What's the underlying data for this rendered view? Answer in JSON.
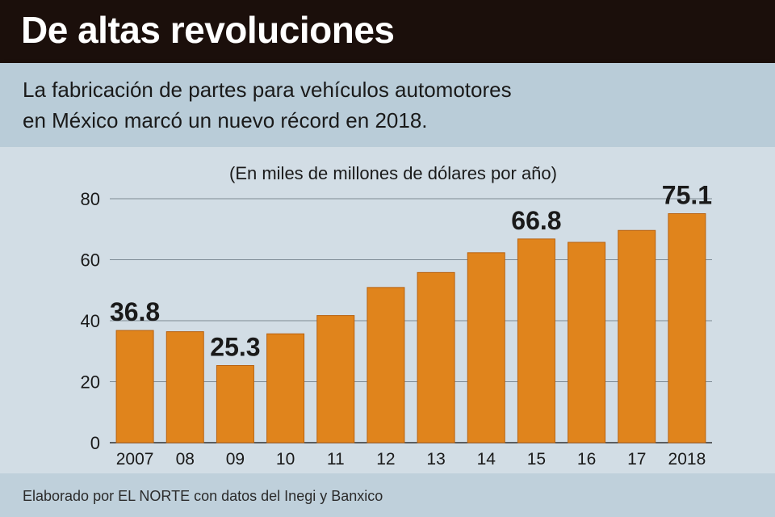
{
  "header": {
    "title": "De altas revoluciones",
    "subtitle_line1": "La fabricación de partes para vehículos automotores",
    "subtitle_line2": "en México marcó un nuevo récord en 2018."
  },
  "footer": {
    "source": "Elaborado por EL NORTE con datos del Inegi y Banxico"
  },
  "colors": {
    "bar": "#e0841c",
    "bar_dark": "#b8610f",
    "grid": "#7d8a94",
    "title_bg": "#1b0f0b"
  },
  "chart_data": {
    "type": "bar",
    "title": "",
    "ylabel": "(En miles de millones de dólares por año)",
    "xlabel": "",
    "categories": [
      "2007",
      "08",
      "09",
      "10",
      "11",
      "12",
      "13",
      "14",
      "15",
      "16",
      "17",
      "2018"
    ],
    "values": [
      36.8,
      36.4,
      25.3,
      35.7,
      41.7,
      50.9,
      55.8,
      62.3,
      66.8,
      65.7,
      69.6,
      75.1
    ],
    "data_labels": [
      {
        "index": 0,
        "text": "36.8"
      },
      {
        "index": 2,
        "text": "25.3"
      },
      {
        "index": 8,
        "text": "66.8"
      },
      {
        "index": 11,
        "text": "75.1"
      }
    ],
    "yticks": [
      "0",
      "20",
      "40",
      "60",
      "80"
    ],
    "ylim": [
      0,
      80
    ],
    "grid": true,
    "legend": "none"
  }
}
